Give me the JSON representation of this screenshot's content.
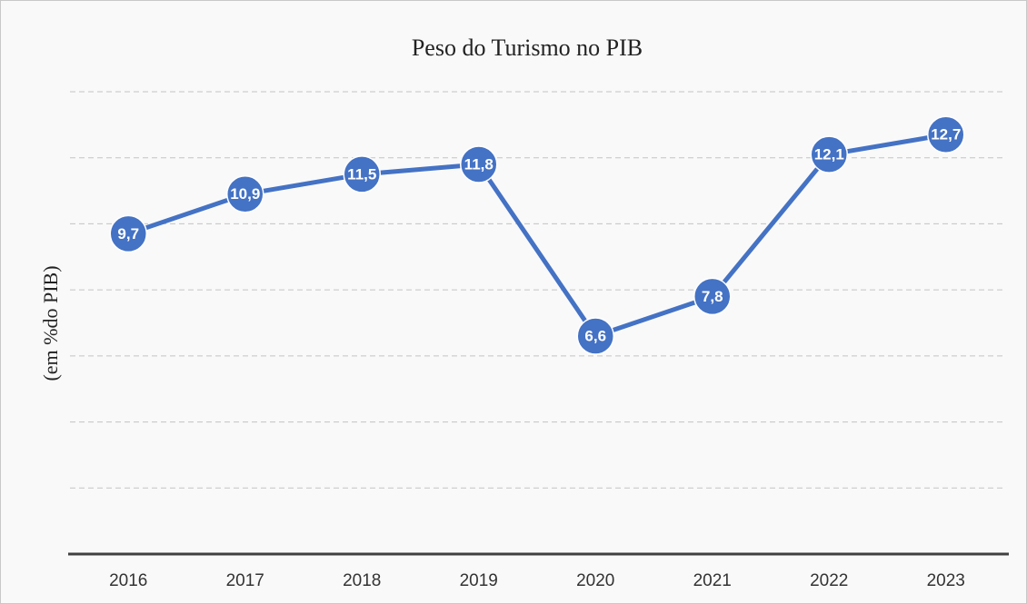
{
  "chart_data": {
    "type": "line",
    "title": "Peso do Turismo no PIB",
    "y_label": "(em %do PIB)",
    "categories": [
      "2016",
      "2017",
      "2018",
      "2019",
      "2020",
      "2021",
      "2022",
      "2023"
    ],
    "series": [
      {
        "name": "Peso do Turismo no PIB",
        "color": "#4472c4",
        "values": [
          9.7,
          10.9,
          11.5,
          11.8,
          6.6,
          7.8,
          12.1,
          12.7
        ],
        "value_labels": [
          "9,7",
          "10,9",
          "11,5",
          "11,8",
          "6,6",
          "7,8",
          "12,1",
          "12,7"
        ]
      }
    ],
    "ylim": [
      0,
      14
    ],
    "yticks": [
      0,
      2,
      4,
      6,
      8,
      10,
      12,
      14
    ],
    "grid": true
  }
}
